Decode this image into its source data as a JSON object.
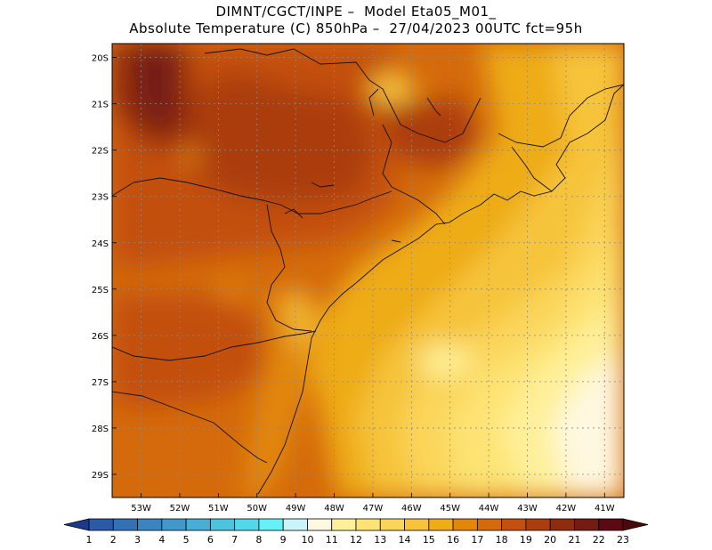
{
  "header": {
    "line1": "DIMNT/CGCT/INPE –  Model Eta05_M01_",
    "line2": "Absolute Temperature (C) 850hPa –  27/04/2023 00UTC fct=95h"
  },
  "map": {
    "lat_labels": [
      "20S",
      "21S",
      "22S",
      "23S",
      "24S",
      "25S",
      "26S",
      "27S",
      "28S",
      "29S"
    ],
    "lon_labels": [
      "53W",
      "52W",
      "51W",
      "50W",
      "49W",
      "48W",
      "47W",
      "46W",
      "45W",
      "44W",
      "43W",
      "42W",
      "41W"
    ],
    "lon_range": [
      -53.75,
      -40.5
    ],
    "lat_range": [
      -29.5,
      -19.7
    ],
    "grid": "dotted"
  },
  "colorbar": {
    "labels": [
      "1",
      "2",
      "3",
      "4",
      "5",
      "6",
      "7",
      "8",
      "9",
      "10",
      "11",
      "12",
      "13",
      "14",
      "15",
      "16",
      "17",
      "18",
      "19",
      "20",
      "21",
      "22",
      "23"
    ],
    "colors": [
      "#22409a",
      "#2b5aa8",
      "#3471b4",
      "#3b84c0",
      "#4298c8",
      "#48aed3",
      "#4cc4de",
      "#52d8e9",
      "#66f0f8",
      "#c8f4fa",
      "#fff8e0",
      "#fef09a",
      "#fde373",
      "#fbd55a",
      "#f6c43a",
      "#eeac16",
      "#e2870a",
      "#d46a0c",
      "#c3500f",
      "#ab3d0e",
      "#8f2b0f",
      "#741b12",
      "#5a0a10"
    ],
    "end_low_color": "#1c3a8c",
    "end_high_color": "#4a0a0c"
  }
}
